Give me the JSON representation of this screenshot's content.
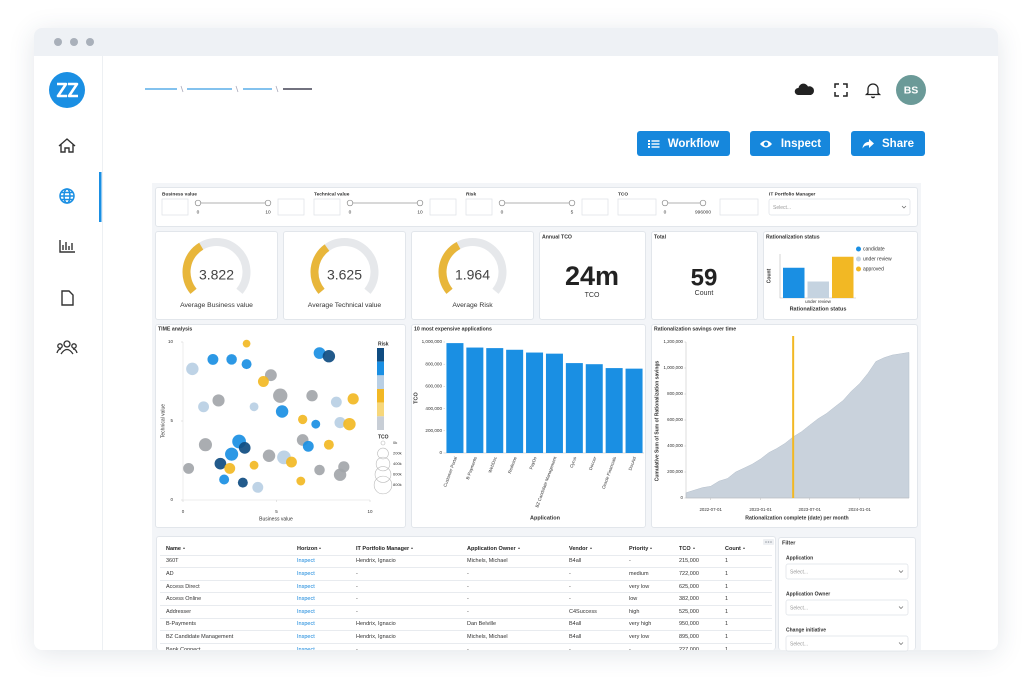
{
  "header": {
    "avatar": "BS",
    "buttons": [
      "Workflow",
      "Inspect",
      "Share"
    ]
  },
  "filters": [
    {
      "label": "Business value",
      "min": 0,
      "max": 10
    },
    {
      "label": "Technical value",
      "min": 0,
      "max": 10
    },
    {
      "label": "Risk",
      "min": 0,
      "max": 5
    },
    {
      "label": "TCO",
      "min": 0,
      "max": 996000
    },
    {
      "label": "IT Portfolio Manager",
      "placeholder": "Select..."
    }
  ],
  "kpis": {
    "gauges": [
      {
        "value": 3.822,
        "range": [
          0,
          10
        ],
        "label": "Average Business value"
      },
      {
        "value": 3.625,
        "range": [
          0,
          10
        ],
        "label": "Average Technical value"
      },
      {
        "value": 1.964,
        "range": [
          0,
          5
        ],
        "label": "Average Risk"
      }
    ],
    "annual_tco": {
      "title": "Annual TCO",
      "value": "24m",
      "label": "TCO"
    },
    "total": {
      "title": "Total",
      "value": 59,
      "label": "Count"
    }
  },
  "chart_data": [
    {
      "type": "bar",
      "title": "Rationalization status",
      "categories": [
        "under review"
      ],
      "series": [
        {
          "name": "candidate",
          "color": "#1a8fe3",
          "values": [
            11
          ]
        },
        {
          "name": "under review",
          "color": "#c5d3e0",
          "values": [
            6
          ]
        },
        {
          "name": "approved",
          "color": "#f2b824",
          "values": [
            15
          ]
        }
      ],
      "ylabel": "Count",
      "xlabel": "Rationalization status",
      "ylim": [
        0,
        16
      ]
    },
    {
      "type": "scatter",
      "title": "TIME analysis",
      "xlabel": "Business value",
      "ylabel": "Technical value",
      "xlim": [
        0,
        10
      ],
      "ylim": [
        0,
        10
      ],
      "xticks": [
        0,
        5,
        10
      ],
      "yticks": [
        0,
        5,
        10
      ],
      "x": [
        0.5,
        1.6,
        2.6,
        3.4,
        3.4,
        7.3,
        7.8,
        4.7,
        4.3,
        1.9,
        1.1,
        3.8,
        5.2,
        6.9,
        8.2,
        9.1,
        5.3,
        6.4,
        7.1,
        8.4,
        8.9,
        1.2,
        3.0,
        3.3,
        2.6,
        4.6,
        5.4,
        6.4,
        6.7,
        7.8,
        0.3,
        2.0,
        2.5,
        3.8,
        5.8,
        7.3,
        8.6,
        8.4,
        2.2,
        3.2,
        4.0,
        6.3
      ],
      "values": [
        8.3,
        8.9,
        8.9,
        9.9,
        8.6,
        9.3,
        9.1,
        7.9,
        7.5,
        6.3,
        5.9,
        5.9,
        6.6,
        6.6,
        6.2,
        6.4,
        5.6,
        5.1,
        4.8,
        4.9,
        4.8,
        3.5,
        3.7,
        3.3,
        2.9,
        2.8,
        2.7,
        3.8,
        3.4,
        3.5,
        2.0,
        2.3,
        2.0,
        2.2,
        2.4,
        1.9,
        2.1,
        1.6,
        1.3,
        1.1,
        0.8,
        1.2
      ],
      "sizes": [
        300000,
        200000,
        180000,
        60000,
        150000,
        250000,
        300000,
        260000,
        200000,
        280000,
        200000,
        100000,
        450000,
        230000,
        200000,
        220000,
        300000,
        120000,
        100000,
        220000,
        300000,
        350000,
        400000,
        250000,
        350000,
        300000,
        400000,
        250000,
        200000,
        150000,
        200000,
        250000,
        200000,
        100000,
        200000,
        180000,
        220000,
        300000,
        150000,
        150000,
        200000,
        100000
      ],
      "colors": [
        "#b9cfe4",
        "#1a8fe3",
        "#1a8fe3",
        "#f2b824",
        "#1a8fe3",
        "#1a8fe3",
        "#0f4c81",
        "#a3a6aa",
        "#f2b824",
        "#a3a6aa",
        "#b9cfe4",
        "#b9cfe4",
        "#a3a6aa",
        "#a3a6aa",
        "#b9cfe4",
        "#f2b824",
        "#1a8fe3",
        "#f2b824",
        "#1a8fe3",
        "#b9cfe4",
        "#f2b824",
        "#a3a6aa",
        "#1a8fe3",
        "#0f4c81",
        "#1a8fe3",
        "#a3a6aa",
        "#b9cfe4",
        "#a3a6aa",
        "#1a8fe3",
        "#f2b824",
        "#a3a6aa",
        "#0f4c81",
        "#f2b824",
        "#f2b824",
        "#f2b824",
        "#a3a6aa",
        "#a3a6aa",
        "#a3a6aa",
        "#1a8fe3",
        "#0f4c81",
        "#b9cfe4",
        "#f2b824"
      ],
      "color_legend": {
        "title": "Risk",
        "colors": [
          "#0f4c81",
          "#1a8fe3",
          "#b9cfe4",
          "#f2b824",
          "#f7d77a",
          "#c8ced6"
        ]
      },
      "size_legend": {
        "title": "TCO",
        "values": [
          0,
          200000,
          400000,
          600000,
          800000
        ],
        "labels": [
          "0k",
          "200k",
          "400k",
          "600k",
          "800k"
        ]
      }
    },
    {
      "type": "bar",
      "title": "10 most expensive applications",
      "categories": [
        "Customer Portal",
        "B-Payments",
        "WebDoc",
        "Redmine",
        "PayDo",
        "BZ Candidate Management",
        "Cyrus",
        "Doccer",
        "Oracle Financials",
        "DocAid"
      ],
      "values": [
        990000,
        950000,
        945000,
        930000,
        905000,
        895000,
        810000,
        800000,
        765000,
        760000
      ],
      "color": "#1a8fe3",
      "xlabel": "Application",
      "ylabel": "TCO",
      "ylim": [
        0,
        1000000
      ],
      "yticks": [
        0,
        {
          "value": 200000,
          "label": "200,000"
        },
        {
          "value": 400000,
          "label": "400,000"
        },
        {
          "value": 600000,
          "label": "600,000"
        },
        {
          "value": 800000,
          "label": "800,000"
        },
        {
          "value": 1000000,
          "label": "1,000,000"
        }
      ]
    },
    {
      "type": "area",
      "title": "Rationalization savings over time",
      "xlabel": "Rationalization complete (date) per month",
      "ylabel": "Cumulative Sum of Sum of Rationalization savings",
      "color": "#c9d2dc",
      "x": [
        "2022-04-01",
        "2022-05-01",
        "2022-06-01",
        "2022-07-01",
        "2022-08-01",
        "2022-09-01",
        "2022-10-01",
        "2022-11-01",
        "2022-12-01",
        "2023-01-01",
        "2023-02-01",
        "2023-03-01",
        "2023-04-01",
        "2023-05-01",
        "2023-06-01",
        "2023-07-01",
        "2023-08-01",
        "2023-09-01",
        "2023-10-01",
        "2023-11-01",
        "2023-12-01",
        "2024-01-01",
        "2024-02-01",
        "2024-03-01",
        "2024-04-01",
        "2024-05-01",
        "2024-06-01",
        "2024-07-01"
      ],
      "values": [
        40000,
        60000,
        80000,
        90000,
        130000,
        150000,
        200000,
        230000,
        260000,
        300000,
        350000,
        380000,
        420000,
        470000,
        510000,
        560000,
        610000,
        650000,
        700000,
        750000,
        820000,
        880000,
        960000,
        1050000,
        1080000,
        1100000,
        1110000,
        1120000
      ],
      "xlim": [
        "2022-04-01",
        "2024-07-01"
      ],
      "xticks": [
        "2022-07-01",
        "2023-01-01",
        "2023-07-01",
        "2024-01-01"
      ],
      "ylim": [
        0,
        1200000
      ],
      "yticks": [
        0,
        {
          "value": 200000,
          "label": "200,000"
        },
        {
          "value": 400000,
          "label": "400,000"
        },
        {
          "value": 600000,
          "label": "600,000"
        },
        {
          "value": 800000,
          "label": "800,000"
        },
        {
          "value": 1000000,
          "label": "1,000,000"
        },
        {
          "value": 1200000,
          "label": "1,200,000"
        }
      ],
      "reference_line": {
        "x": "2023-05-01",
        "color": "#f2b824"
      }
    }
  ],
  "table": {
    "columns": [
      "Name",
      "Horizon",
      "IT Portfolio Manager",
      "Application Owner",
      "Vendor",
      "Priority",
      "TCO",
      "Count"
    ],
    "rows": [
      [
        "360T",
        "Inspect",
        "Hendrix, Ignacio",
        "Michels, Michael",
        "B4all",
        "-",
        "215,000",
        "1"
      ],
      [
        "AD",
        "Inspect",
        "-",
        "-",
        "-",
        "medium",
        "722,000",
        "1"
      ],
      [
        "Access Direct",
        "Inspect",
        "-",
        "-",
        "-",
        "very low",
        "625,000",
        "1"
      ],
      [
        "Access Online",
        "Inspect",
        "-",
        "-",
        "-",
        "low",
        "382,000",
        "1"
      ],
      [
        "Addresser",
        "Inspect",
        "-",
        "-",
        "C4Success",
        "high",
        "525,000",
        "1"
      ],
      [
        "B-Payments",
        "Inspect",
        "Hendrix, Ignacio",
        "Dan Belville",
        "B4all",
        "very high",
        "950,000",
        "1"
      ],
      [
        "BZ Candidate Management",
        "Inspect",
        "Hendrix, Ignacio",
        "Michels, Michael",
        "B4all",
        "very low",
        "895,000",
        "1"
      ],
      [
        "Bank Connect",
        "Inspect",
        "-",
        "-",
        "-",
        "-",
        "227,000",
        "1"
      ]
    ]
  },
  "side_filter": {
    "title": "Filter",
    "fields": [
      {
        "label": "Application",
        "placeholder": "Select..."
      },
      {
        "label": "Application Owner",
        "placeholder": "Select..."
      },
      {
        "label": "Change initiative",
        "placeholder": "Select..."
      }
    ]
  }
}
